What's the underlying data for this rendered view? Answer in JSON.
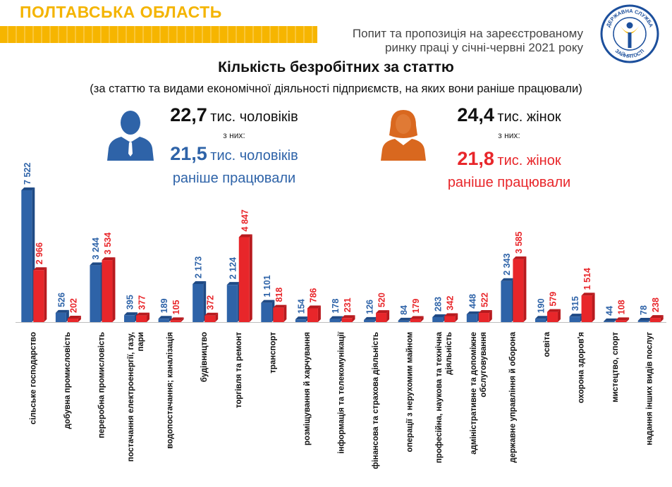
{
  "header": {
    "region": "ПОЛТАВСЬКА ОБЛАСТЬ",
    "subtitle_line1": "Попит та пропозиція на зареєстрованому",
    "subtitle_line2": "ринку праці у січні-червні 2021 року",
    "logo_text_top": "ДЕРЖАВНА СЛУЖБА",
    "logo_text_bottom": "ЗАЙНЯТОСТІ"
  },
  "stats": {
    "men_total_value": "22,7",
    "men_total_unit": "тис. чоловіків",
    "men_of": "з них:",
    "men_worked_value": "21,5",
    "men_worked_unit": "тис. чоловіків",
    "men_worked_label": "раніше працювали",
    "women_total_value": "24,4",
    "women_total_unit": "тис. жінок",
    "women_of": "з них:",
    "women_worked_value": "21,8",
    "women_worked_unit": "тис. жінок",
    "women_worked_label": "раніше працювали"
  },
  "colors": {
    "men": "#2e63a8",
    "women": "#e8262a",
    "accent": "#f6b500"
  },
  "icons": {
    "men": "man-silhouette-icon",
    "women": "woman-silhouette-icon",
    "logo": "employment-service-logo"
  },
  "chart_data": {
    "type": "bar",
    "title": "Кількість безробітних за статтю",
    "subtitle": "(за статтю та видами економічної діяльності підприємств, на яких вони раніше працювали)",
    "categories": [
      [
        "сільське господарство"
      ],
      [
        "добувна промисловість"
      ],
      [
        "переробна промисловість"
      ],
      [
        "постачання електроенергії, газу,",
        "пари"
      ],
      [
        "водопостачання; каналізація"
      ],
      [
        "будівництво"
      ],
      [
        "торгівля та ремонт"
      ],
      [
        "транспорт"
      ],
      [
        "розміщування й харчування"
      ],
      [
        "інформація та телекомунікації"
      ],
      [
        "фінансова та страхова діяльність"
      ],
      [
        "операції з нерухомим майном"
      ],
      [
        "професійна, наукова та технічна",
        "діяльність"
      ],
      [
        "адміністративне та допоміжне",
        "обслуговування"
      ],
      [
        "державне управління й оборона"
      ],
      [
        "освіта"
      ],
      [
        "охорона здоров'я"
      ],
      [
        "мистецтво, спорт"
      ],
      [
        "надання інших видів послуг"
      ]
    ],
    "series": [
      {
        "values": [
          7522,
          526,
          3244,
          395,
          189,
          2173,
          2124,
          1101,
          154,
          178,
          126,
          84,
          283,
          448,
          2343,
          190,
          315,
          44,
          78
        ],
        "labels": [
          "7 522",
          "526",
          "3 244",
          "395",
          "189",
          "2 173",
          "2 124",
          "1 101",
          "154",
          "178",
          "126",
          "84",
          "283",
          "448",
          "2 343",
          "190",
          "315",
          "44",
          "78"
        ]
      },
      {
        "values": [
          2966,
          202,
          3534,
          377,
          105,
          372,
          4847,
          818,
          786,
          231,
          520,
          179,
          342,
          522,
          3585,
          579,
          1514,
          108,
          238
        ],
        "labels": [
          "2 966",
          "202",
          "3 534",
          "377",
          "105",
          "372",
          "4 847",
          "818",
          "786",
          "231",
          "520",
          "179",
          "342",
          "522",
          "3 585",
          "579",
          "1 514",
          "108",
          "238"
        ]
      }
    ],
    "ylim": [
      0,
      7600
    ]
  }
}
